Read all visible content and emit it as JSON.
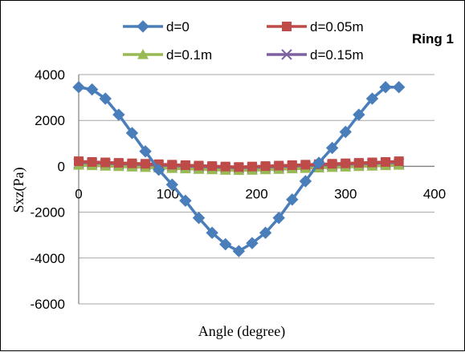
{
  "chart_data": {
    "type": "line",
    "title": "Ring 1",
    "xlabel": "Angle (degree)",
    "ylabel": "Sxz(Pa)",
    "xlim": [
      0,
      400
    ],
    "ylim": [
      -6000,
      4000
    ],
    "x_ticks": [
      0,
      100,
      200,
      300,
      400
    ],
    "y_ticks": [
      4000,
      2000,
      0,
      -2000,
      -4000,
      -6000
    ],
    "x_tick_labels": [
      "0",
      "100",
      "200",
      "300",
      "400"
    ],
    "y_tick_labels": [
      "4000",
      "2000",
      "0",
      "-2000",
      "-4000",
      "-6000"
    ],
    "grid": "horizontal",
    "legend_position": "top",
    "x": [
      0,
      15,
      30,
      45,
      60,
      75,
      90,
      105,
      120,
      135,
      150,
      165,
      180,
      195,
      210,
      225,
      240,
      255,
      270,
      285,
      300,
      315,
      330,
      345,
      360
    ],
    "series": [
      {
        "name": "d=0",
        "color": "#4a7ebb",
        "marker": "diamond",
        "values": [
          3450,
          3350,
          2950,
          2250,
          1450,
          650,
          -150,
          -800,
          -1500,
          -2250,
          -2900,
          -3400,
          -3700,
          -3350,
          -2900,
          -2250,
          -1450,
          -650,
          150,
          800,
          1500,
          2250,
          2950,
          3450,
          3450
        ]
      },
      {
        "name": "d=0.05m",
        "color": "#be4b48",
        "marker": "square",
        "values": [
          220,
          190,
          170,
          150,
          130,
          110,
          90,
          70,
          50,
          30,
          10,
          -10,
          -30,
          -10,
          10,
          30,
          50,
          70,
          90,
          110,
          130,
          150,
          170,
          190,
          220
        ]
      },
      {
        "name": "d=0.1m",
        "color": "#98b954",
        "marker": "triangle",
        "values": [
          50,
          30,
          10,
          -10,
          -30,
          -50,
          -70,
          -90,
          -110,
          -130,
          -150,
          -170,
          -180,
          -170,
          -150,
          -130,
          -110,
          -90,
          -70,
          -50,
          -30,
          -10,
          10,
          30,
          50
        ]
      },
      {
        "name": "d=0.15m",
        "color": "#7d60a0",
        "marker": "x",
        "values": [
          130,
          120,
          100,
          80,
          60,
          40,
          20,
          0,
          -20,
          -40,
          -60,
          -80,
          -90,
          -80,
          -60,
          -40,
          -20,
          0,
          20,
          40,
          60,
          80,
          100,
          120,
          130
        ]
      }
    ]
  }
}
